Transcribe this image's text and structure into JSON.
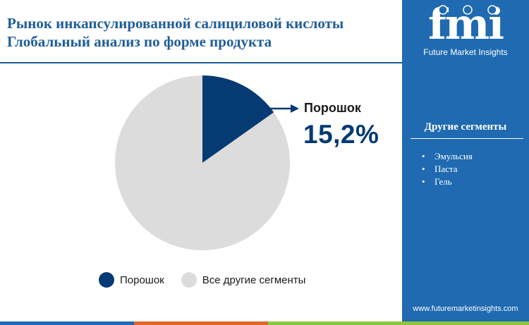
{
  "title_lines": [
    "Рынок инкапсулированной салициловой кислоты",
    "Глобальный анализ по форме продукта"
  ],
  "chart_data": {
    "type": "pie",
    "categories": [
      "Порошок",
      "Все другие сегменты"
    ],
    "values": [
      15.2,
      84.8
    ],
    "colors": [
      "#063a73",
      "#dcdcdc"
    ],
    "legend_position": "bottom",
    "callout": {
      "label": "Порошок",
      "value": "15,2%"
    }
  },
  "legend": [
    {
      "label": "Порошок",
      "color": "#063a73"
    },
    {
      "label": "Все другие сегменты",
      "color": "#dcdcdc"
    }
  ],
  "side_panel": {
    "logo_text": "fmi",
    "logo_caption": "Future Market Insights",
    "heading": "Другие сегменты",
    "items": [
      "Эмульсия",
      "Паста",
      "Гель"
    ],
    "website": "www.futuremarketinsights.com",
    "background": "#1f6ab0"
  },
  "bottom_bar_colors": [
    "#1f6ab0",
    "#e0682c",
    "#8cc63f"
  ]
}
